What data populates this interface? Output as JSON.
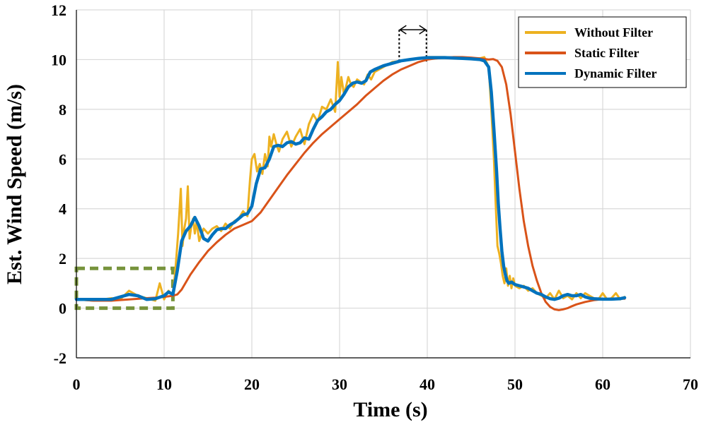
{
  "chart_data": {
    "type": "line",
    "title": "",
    "xlabel": "Time (s)",
    "ylabel": "Est. Wind Speed (m/s)",
    "xlim": [
      0,
      70
    ],
    "ylim": [
      -2,
      12
    ],
    "xticks": [
      0,
      10,
      20,
      30,
      40,
      50,
      60,
      70
    ],
    "yticks": [
      -2,
      0,
      2,
      4,
      6,
      8,
      10,
      12
    ],
    "grid": true,
    "legend_position": "top-right",
    "series": [
      {
        "name": "Without Filter",
        "color": "#EDB120",
        "x": [
          0,
          2,
          4,
          5,
          6,
          7,
          8,
          9,
          9.5,
          10,
          10.5,
          11,
          11.3,
          11.6,
          11.9,
          12.1,
          12.3,
          12.5,
          12.7,
          12.9,
          13.1,
          13.3,
          13.5,
          13.7,
          14,
          14.5,
          15,
          15.5,
          16,
          16.5,
          17,
          17.5,
          18,
          18.5,
          19,
          19.5,
          19.8,
          20,
          20.3,
          20.6,
          20.9,
          21.2,
          21.5,
          21.8,
          22,
          22.2,
          22.5,
          22.8,
          23.1,
          23.5,
          24,
          24.5,
          25,
          25.5,
          26,
          26.5,
          27,
          27.5,
          28,
          28.5,
          29,
          29.5,
          29.8,
          30,
          30.2,
          30.5,
          30.8,
          31,
          31.3,
          31.6,
          32,
          32.4,
          32.8,
          33.2,
          33.6,
          34,
          34.5,
          35,
          35.5,
          36,
          37,
          38,
          39,
          40,
          42,
          44,
          45,
          46,
          46.5,
          47,
          47.3,
          47.6,
          47.8,
          48,
          48.2,
          48.4,
          48.6,
          48.8,
          49,
          49.2,
          49.4,
          49.6,
          49.8,
          50,
          50.5,
          51,
          51.5,
          52,
          52.5,
          53,
          53.5,
          54,
          54.5,
          55,
          55.5,
          56,
          56.5,
          57,
          57.5,
          58,
          58.5,
          59,
          59.5,
          60,
          60.5,
          61,
          61.5,
          62,
          62.5
        ],
        "y": [
          0.35,
          0.3,
          0.4,
          0.35,
          0.7,
          0.5,
          0.4,
          0.3,
          1.0,
          0.35,
          0.7,
          0.5,
          1.6,
          3.0,
          4.8,
          2.5,
          3.2,
          3.6,
          4.9,
          2.8,
          3.3,
          3.6,
          3.0,
          3.5,
          2.7,
          3.2,
          3.0,
          3.2,
          3.3,
          3.1,
          3.4,
          3.2,
          3.5,
          3.6,
          3.9,
          3.7,
          5.2,
          6.0,
          6.2,
          5.5,
          5.8,
          5.4,
          6.2,
          5.7,
          6.9,
          6.5,
          7.0,
          6.6,
          6.3,
          6.8,
          7.1,
          6.5,
          6.9,
          7.2,
          6.6,
          7.4,
          7.8,
          7.5,
          8.1,
          8.0,
          8.4,
          7.9,
          9.9,
          8.5,
          9.3,
          8.6,
          9.0,
          9.3,
          9.0,
          8.9,
          9.2,
          9.1,
          9.0,
          9.4,
          9.2,
          9.5,
          9.6,
          9.7,
          9.8,
          9.9,
          9.95,
          10.0,
          10.05,
          10.1,
          10.1,
          10.08,
          10.05,
          10.05,
          10.1,
          9.7,
          8.0,
          6.0,
          4.2,
          2.5,
          2.2,
          1.8,
          1.3,
          1.0,
          1.6,
          0.9,
          1.3,
          0.8,
          1.2,
          0.9,
          0.8,
          0.9,
          0.7,
          0.8,
          0.6,
          0.5,
          0.4,
          0.6,
          0.35,
          0.7,
          0.4,
          0.5,
          0.35,
          0.6,
          0.4,
          0.6,
          0.5,
          0.4,
          0.35,
          0.6,
          0.35,
          0.4,
          0.6,
          0.35,
          0.45
        ]
      },
      {
        "name": "Static Filter",
        "color": "#D95319",
        "x": [
          0,
          2,
          4,
          6,
          8,
          9,
          10,
          11,
          11.5,
          12,
          12.5,
          13,
          14,
          15,
          16,
          17,
          18,
          19,
          20,
          21,
          22,
          23,
          24,
          25,
          26,
          27,
          28,
          29,
          30,
          31,
          32,
          33,
          34,
          35,
          36,
          37,
          38,
          39,
          40,
          41,
          42,
          43,
          44,
          45,
          46,
          47,
          47.5,
          48,
          48.5,
          49,
          49.5,
          50,
          50.5,
          51,
          51.5,
          52,
          52.5,
          53,
          53.5,
          54,
          54.5,
          55,
          55.5,
          56,
          56.5,
          57,
          58,
          59,
          60,
          61,
          62,
          62.5
        ],
        "y": [
          0.35,
          0.3,
          0.3,
          0.35,
          0.4,
          0.42,
          0.45,
          0.5,
          0.55,
          0.75,
          1.05,
          1.35,
          1.85,
          2.3,
          2.65,
          2.95,
          3.2,
          3.35,
          3.5,
          3.85,
          4.35,
          4.85,
          5.35,
          5.8,
          6.25,
          6.65,
          7.0,
          7.3,
          7.6,
          7.9,
          8.2,
          8.55,
          8.85,
          9.15,
          9.4,
          9.6,
          9.75,
          9.9,
          10.0,
          10.05,
          10.08,
          10.1,
          10.1,
          10.08,
          10.05,
          10.0,
          10.02,
          9.95,
          9.7,
          9.0,
          7.8,
          6.3,
          4.8,
          3.5,
          2.5,
          1.7,
          1.1,
          0.6,
          0.25,
          0.05,
          -0.05,
          -0.08,
          -0.05,
          0.0,
          0.08,
          0.15,
          0.25,
          0.32,
          0.36,
          0.38,
          0.38,
          0.38
        ]
      },
      {
        "name": "Dynamic Filter",
        "color": "#0072BD",
        "x": [
          0,
          2,
          4,
          5,
          6,
          7,
          8,
          9,
          10,
          10.5,
          11,
          11.5,
          12,
          12.5,
          13,
          13.5,
          14,
          14.5,
          15,
          15.5,
          16,
          16.5,
          17,
          17.5,
          18,
          18.5,
          19,
          19.5,
          20,
          20.5,
          21,
          21.5,
          22,
          22.5,
          23,
          23.5,
          24,
          24.5,
          25,
          25.5,
          26,
          26.5,
          27,
          27.5,
          28,
          28.5,
          29,
          29.5,
          30,
          30.5,
          31,
          31.5,
          32,
          32.5,
          33,
          33.5,
          34,
          35,
          36,
          37,
          38,
          39,
          40,
          42,
          44,
          45,
          46,
          46.5,
          47,
          47.3,
          47.6,
          47.9,
          48.1,
          48.3,
          48.5,
          48.7,
          48.9,
          49.1,
          49.3,
          49.6,
          50,
          50.5,
          51,
          51.5,
          52,
          52.5,
          53,
          53.5,
          54,
          54.5,
          55,
          55.5,
          56,
          56.5,
          57,
          57.5,
          58,
          58.5,
          59,
          60,
          61,
          62,
          62.5
        ],
        "y": [
          0.35,
          0.35,
          0.35,
          0.45,
          0.55,
          0.5,
          0.35,
          0.38,
          0.5,
          0.65,
          0.55,
          1.5,
          2.7,
          3.1,
          3.3,
          3.65,
          3.3,
          2.8,
          2.7,
          2.95,
          3.15,
          3.2,
          3.2,
          3.35,
          3.45,
          3.6,
          3.75,
          3.8,
          4.1,
          5.0,
          5.6,
          5.65,
          6.0,
          6.5,
          6.55,
          6.5,
          6.65,
          6.7,
          6.6,
          6.65,
          6.85,
          6.8,
          7.2,
          7.55,
          7.7,
          7.9,
          8.0,
          8.2,
          8.35,
          8.6,
          8.9,
          9.05,
          9.1,
          9.05,
          9.15,
          9.5,
          9.6,
          9.75,
          9.85,
          9.95,
          10.0,
          10.05,
          10.08,
          10.08,
          10.05,
          10.03,
          10.0,
          9.95,
          9.7,
          8.7,
          7.2,
          5.5,
          4.2,
          3.2,
          2.3,
          1.7,
          1.35,
          1.1,
          1.0,
          1.05,
          0.95,
          0.9,
          0.85,
          0.8,
          0.7,
          0.6,
          0.55,
          0.45,
          0.38,
          0.35,
          0.4,
          0.5,
          0.55,
          0.5,
          0.5,
          0.55,
          0.45,
          0.4,
          0.38,
          0.36,
          0.36,
          0.38,
          0.42
        ]
      }
    ],
    "annotations": [
      {
        "type": "dashed-box",
        "color": "#77933C",
        "x": [
          0,
          11
        ],
        "y": [
          0,
          1.6
        ]
      },
      {
        "type": "double-arrow",
        "color": "#000000",
        "x": [
          36.8,
          39.9
        ],
        "y": 11.2
      },
      {
        "type": "dotted-bracket",
        "color": "#000000",
        "x": [
          36.8,
          39.9
        ],
        "y": [
          9.9,
          11.2
        ]
      }
    ]
  }
}
